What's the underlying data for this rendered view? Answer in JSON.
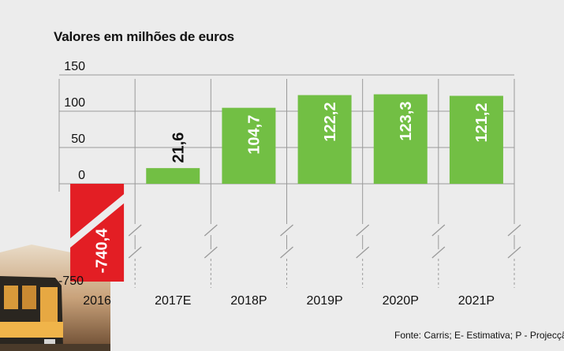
{
  "chart_data": {
    "type": "bar",
    "title": "Valores em milhões de euros",
    "categories": [
      "2016",
      "2017E",
      "2018P",
      "2019P",
      "2020P",
      "2021P"
    ],
    "values": [
      -740.4,
      21.6,
      104.7,
      122.2,
      123.3,
      121.2
    ],
    "value_labels": [
      "-740,4",
      "21,6",
      "104,7",
      "122,2",
      "123,3",
      "121,2"
    ],
    "y_ticks": [
      "150",
      "100",
      "50",
      "0",
      "-750"
    ],
    "ylim": [
      -750,
      150
    ],
    "axis_break": true,
    "grid": true,
    "xlabel": "",
    "ylabel": ""
  },
  "source": "Fonte: Carris; E- Estimativa; P - Projecção",
  "colors": {
    "positive": "#72bf44",
    "negative": "#e31e24",
    "grid": "#9a9a9a",
    "background": "#ececec"
  }
}
